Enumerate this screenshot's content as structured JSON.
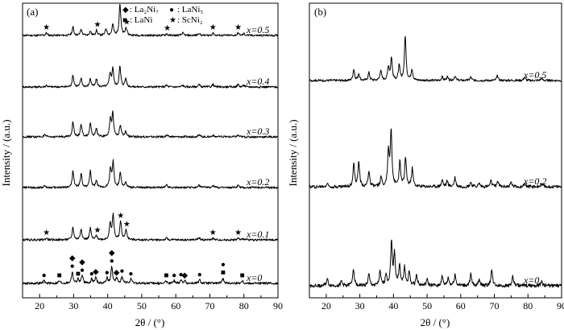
{
  "chart_data": [
    {
      "type": "line",
      "panel_label": "(a)",
      "xlabel": "2θ / (°)",
      "ylabel": "Intensity / (a.u.)",
      "xlim": [
        15,
        90
      ],
      "x_ticks": [
        20,
        30,
        40,
        50,
        60,
        70,
        80,
        90
      ],
      "legend": {
        "placement": "top-center",
        "entries": [
          {
            "symbol": "diamond",
            "glyph": "◆",
            "label": ": La₂Ni₇"
          },
          {
            "symbol": "circle",
            "glyph": "●",
            "label": ": LaNi₅"
          },
          {
            "symbol": "square",
            "glyph": "■",
            "label": ": LaNi"
          },
          {
            "symbol": "star",
            "glyph": "★",
            "label": ": ScNi₂"
          }
        ]
      },
      "series": [
        {
          "label": "x=0.5",
          "label_html_prefix": "x",
          "label_value": "=0.5",
          "noise": 1.2,
          "peaks": [
            [
              22,
              3
            ],
            [
              29.8,
              10
            ],
            [
              32.2,
              7
            ],
            [
              34.9,
              5
            ],
            [
              36.7,
              6
            ],
            [
              39.5,
              8
            ],
            [
              41.5,
              13
            ],
            [
              43.6,
              38
            ],
            [
              45.4,
              9
            ],
            [
              57.3,
              2
            ],
            [
              62,
              3
            ],
            [
              66.8,
              3
            ],
            [
              70.9,
              3
            ],
            [
              78.3,
              3
            ],
            [
              80,
              2
            ]
          ],
          "markers": [
            {
              "x": 22,
              "symbol": "star"
            },
            {
              "x": 37,
              "symbol": "star"
            },
            {
              "x": 43.6,
              "symbol": "star"
            },
            {
              "x": 45.6,
              "symbol": "star"
            },
            {
              "x": 57.5,
              "symbol": "star"
            },
            {
              "x": 70.9,
              "symbol": "star"
            },
            {
              "x": 78.3,
              "symbol": "star"
            }
          ]
        },
        {
          "label": "x=0.4",
          "label_html_prefix": "x",
          "label_value": "=0.4",
          "noise": 1.2,
          "peaks": [
            [
              22,
              2
            ],
            [
              29.8,
              14
            ],
            [
              32.2,
              10
            ],
            [
              34.9,
              10
            ],
            [
              36.7,
              9
            ],
            [
              40.7,
              16
            ],
            [
              41.5,
              22
            ],
            [
              43.6,
              24
            ],
            [
              45.3,
              10
            ],
            [
              57.3,
              2
            ],
            [
              62,
              2
            ],
            [
              66.8,
              3
            ],
            [
              70.9,
              3
            ],
            [
              78.3,
              3
            ],
            [
              80,
              2
            ]
          ],
          "markers": []
        },
        {
          "label": "x=0.3",
          "label_html_prefix": "x",
          "label_value": "=0.3",
          "noise": 1.2,
          "peaks": [
            [
              21.5,
              2
            ],
            [
              29.8,
              18
            ],
            [
              32.2,
              14
            ],
            [
              34.9,
              16
            ],
            [
              36.7,
              10
            ],
            [
              40.8,
              20
            ],
            [
              41.5,
              28
            ],
            [
              43.7,
              14
            ],
            [
              45.3,
              6
            ],
            [
              57.3,
              2
            ],
            [
              66.8,
              3
            ],
            [
              70.9,
              2
            ],
            [
              78.3,
              2
            ]
          ],
          "markers": []
        },
        {
          "label": "x=0.2",
          "label_html_prefix": "x",
          "label_value": "=0.2",
          "noise": 1.2,
          "peaks": [
            [
              21.5,
              2
            ],
            [
              29.8,
              20
            ],
            [
              32.2,
              16
            ],
            [
              34.9,
              20
            ],
            [
              36.7,
              8
            ],
            [
              40.8,
              22
            ],
            [
              41.6,
              30
            ],
            [
              43.7,
              18
            ],
            [
              45.3,
              6
            ],
            [
              57.3,
              3
            ],
            [
              66.8,
              3
            ],
            [
              70.9,
              3
            ],
            [
              78.3,
              3
            ]
          ],
          "markers": []
        },
        {
          "label": "x=0.1",
          "label_html_prefix": "x",
          "label_value": "=0.1",
          "noise": 1.2,
          "peaks": [
            [
              22,
              2
            ],
            [
              29.8,
              15
            ],
            [
              32.2,
              13
            ],
            [
              34.9,
              14
            ],
            [
              36.7,
              5
            ],
            [
              40.7,
              19
            ],
            [
              41.6,
              30
            ],
            [
              43.8,
              22
            ],
            [
              45.4,
              12
            ],
            [
              57.3,
              2
            ],
            [
              66.8,
              3
            ],
            [
              70.9,
              2
            ],
            [
              78.3,
              2
            ],
            [
              80,
              1.5
            ]
          ],
          "markers": [
            {
              "x": 22,
              "symbol": "star"
            },
            {
              "x": 37,
              "symbol": "star"
            },
            {
              "x": 43.8,
              "symbol": "star"
            },
            {
              "x": 45.6,
              "symbol": "star"
            },
            {
              "x": 70.9,
              "symbol": "star"
            },
            {
              "x": 78.3,
              "symbol": "star"
            }
          ]
        },
        {
          "label": "x=0",
          "label_html_prefix": "x",
          "label_value": "=0",
          "noise": 1.4,
          "peaks": [
            [
              21.3,
              3
            ],
            [
              25.8,
              3
            ],
            [
              29.6,
              14
            ],
            [
              31.3,
              5
            ],
            [
              32.5,
              9
            ],
            [
              35.3,
              5
            ],
            [
              36.5,
              7
            ],
            [
              39.8,
              6
            ],
            [
              41.2,
              20
            ],
            [
              42.6,
              6
            ],
            [
              44.2,
              8
            ],
            [
              46.8,
              5
            ],
            [
              57.2,
              3
            ],
            [
              59.5,
              3
            ],
            [
              61.5,
              4
            ],
            [
              62.6,
              3
            ],
            [
              67,
              4
            ],
            [
              73.9,
              6
            ],
            [
              79.5,
              3
            ]
          ],
          "markers": [
            {
              "x": 21.3,
              "symbol": "circle"
            },
            {
              "x": 25.8,
              "symbol": "square"
            },
            {
              "x": 29.6,
              "symbol": "circle"
            },
            {
              "x": 29.6,
              "symbol": "diamond"
            },
            {
              "x": 31.3,
              "symbol": "square"
            },
            {
              "x": 32.5,
              "symbol": "circle"
            },
            {
              "x": 32.5,
              "symbol": "diamond"
            },
            {
              "x": 35.3,
              "symbol": "circle"
            },
            {
              "x": 36.5,
              "symbol": "diamond"
            },
            {
              "x": 39.8,
              "symbol": "circle"
            },
            {
              "x": 41.2,
              "symbol": "circle"
            },
            {
              "x": 41.2,
              "symbol": "diamond"
            },
            {
              "x": 42.6,
              "symbol": "diamond"
            },
            {
              "x": 44.2,
              "symbol": "circle"
            },
            {
              "x": 46.8,
              "symbol": "circle"
            },
            {
              "x": 57.2,
              "symbol": "square"
            },
            {
              "x": 59.5,
              "symbol": "circle"
            },
            {
              "x": 61.5,
              "symbol": "circle"
            },
            {
              "x": 62.6,
              "symbol": "diamond"
            },
            {
              "x": 67,
              "symbol": "circle"
            },
            {
              "x": 73.9,
              "symbol": "square"
            },
            {
              "x": 73.9,
              "symbol": "circle"
            },
            {
              "x": 79.5,
              "symbol": "square"
            }
          ]
        }
      ]
    },
    {
      "type": "line",
      "panel_label": "(b)",
      "xlabel": "2θ / (°)",
      "ylabel": "Intensity / (a.u.)",
      "xlim": [
        15,
        90
      ],
      "x_ticks": [
        20,
        30,
        40,
        50,
        60,
        70,
        80,
        90
      ],
      "series": [
        {
          "label": "x=0.5",
          "label_html_prefix": "x",
          "label_value": "=0.5",
          "noise": 1.0,
          "peaks": [
            [
              28.2,
              10
            ],
            [
              29.7,
              6
            ],
            [
              32.7,
              7
            ],
            [
              36.2,
              9
            ],
            [
              38.5,
              12
            ],
            [
              39.4,
              20
            ],
            [
              41.7,
              13
            ],
            [
              43.5,
              40
            ],
            [
              45.5,
              10
            ],
            [
              54.5,
              3
            ],
            [
              56,
              3
            ],
            [
              58.3,
              4
            ],
            [
              63,
              3
            ],
            [
              70.9,
              4
            ],
            [
              79,
              3
            ],
            [
              84,
              2
            ]
          ],
          "markers": []
        },
        {
          "label": "x=0.2",
          "label_html_prefix": "x",
          "label_value": "=0.2",
          "noise": 1.4,
          "peaks": [
            [
              20.3,
              3
            ],
            [
              28.2,
              20
            ],
            [
              29.7,
              22
            ],
            [
              32.7,
              14
            ],
            [
              36.3,
              8
            ],
            [
              38.5,
              30
            ],
            [
              39.3,
              50
            ],
            [
              41.9,
              22
            ],
            [
              43.6,
              26
            ],
            [
              45.6,
              16
            ],
            [
              54.5,
              6
            ],
            [
              56,
              5
            ],
            [
              58.3,
              8
            ],
            [
              63,
              4
            ],
            [
              65.5,
              3
            ],
            [
              69,
              5
            ],
            [
              71,
              5
            ],
            [
              75,
              4
            ],
            [
              79,
              3
            ],
            [
              84,
              2
            ]
          ],
          "markers": []
        },
        {
          "label": "x=0",
          "label_html_prefix": "x",
          "label_value": "=0",
          "noise": 1.6,
          "peaks": [
            [
              20.3,
              6
            ],
            [
              24.5,
              4
            ],
            [
              28.1,
              16
            ],
            [
              32.7,
              10
            ],
            [
              36,
              12
            ],
            [
              37.8,
              10
            ],
            [
              39.4,
              38
            ],
            [
              40.3,
              28
            ],
            [
              41.8,
              18
            ],
            [
              43.3,
              16
            ],
            [
              44.7,
              12
            ],
            [
              46.9,
              10
            ],
            [
              50,
              5
            ],
            [
              54.5,
              8
            ],
            [
              56.3,
              7
            ],
            [
              58.3,
              10
            ],
            [
              63,
              10
            ],
            [
              65.5,
              6
            ],
            [
              69.2,
              14
            ],
            [
              75.5,
              8
            ],
            [
              84,
              4
            ]
          ],
          "markers": []
        }
      ]
    }
  ]
}
